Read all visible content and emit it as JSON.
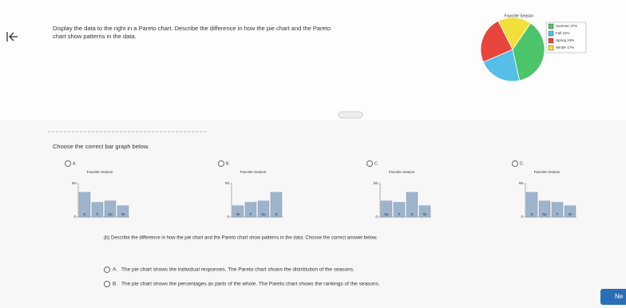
{
  "question": {
    "text_1": "Display the data to the right in a Pareto chart. Describe the difference in how the pie chart and the Pareto",
    "text_2": "chart show patterns in the data."
  },
  "pie": {
    "title": "Favorite Season",
    "labels": [
      "Summer 37%",
      "Fall 22%",
      "Spring 24%",
      "Winter 17%"
    ],
    "values": [
      37,
      22,
      24,
      17
    ],
    "colors": [
      "#4cc46a",
      "#55bfe8",
      "#e8463c",
      "#f2e03a"
    ]
  },
  "part_a": {
    "prompt": "Choose the correct bar graph below.",
    "bar_color": "#9db4cc",
    "options": [
      {
        "letter": "A.",
        "title": "Favorite Season",
        "yticks": [
          0,
          50
        ],
        "ylim": [
          0,
          50
        ],
        "categories": [
          "S",
          "F",
          "Sp",
          "W"
        ],
        "values": [
          37,
          22,
          24,
          17
        ]
      },
      {
        "letter": "B.",
        "title": "Favorite Season",
        "yticks": [
          0,
          50
        ],
        "ylim": [
          0,
          50
        ],
        "categories": [
          "W",
          "F",
          "Sp",
          "S"
        ],
        "values": [
          17,
          22,
          24,
          37
        ]
      },
      {
        "letter": "C.",
        "title": "Favorite Season",
        "yticks": [
          0,
          50
        ],
        "ylim": [
          0,
          50
        ],
        "categories": [
          "Sp",
          "F",
          "S",
          "W"
        ],
        "values": [
          24,
          22,
          37,
          17
        ]
      },
      {
        "letter": "D.",
        "title": "Favorite Season",
        "yticks": [
          0,
          50
        ],
        "ylim": [
          0,
          50
        ],
        "categories": [
          "S",
          "Sp",
          "F",
          "W"
        ],
        "values": [
          37,
          24,
          22,
          17
        ]
      }
    ]
  },
  "part_b": {
    "prompt": "(b) Describe the difference in how the pie chart and the Pareto chart show patterns in the data. Choose the correct answer below.",
    "options": [
      {
        "letter": "A.",
        "text": "The pie chart shows the individual responses. The Pareto chart shows the distribution of the seasons."
      },
      {
        "letter": "B.",
        "text": "The pie chart shows the percentages as parts of the whole. The Pareto chart shows the rankings of the seasons."
      }
    ]
  },
  "next_button": "Ne"
}
